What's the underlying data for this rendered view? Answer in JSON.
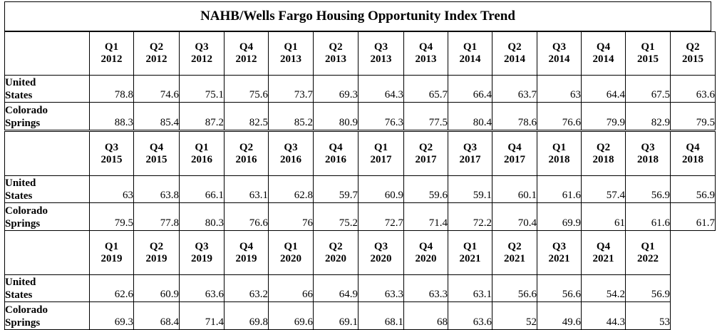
{
  "title": "NAHB/Wells Fargo Housing Opportunity Index Trend",
  "row_labels": {
    "us": [
      "United",
      "States"
    ],
    "co": [
      "Colorado",
      "Springs"
    ]
  },
  "blocks": [
    {
      "periods": [
        [
          "Q1",
          "2012"
        ],
        [
          "Q2",
          "2012"
        ],
        [
          "Q3",
          "2012"
        ],
        [
          "Q4",
          "2012"
        ],
        [
          "Q1",
          "2013"
        ],
        [
          "Q2",
          "2013"
        ],
        [
          "Q3",
          "2013"
        ],
        [
          "Q4",
          "2013"
        ],
        [
          "Q1",
          "2014"
        ],
        [
          "Q2",
          "2014"
        ],
        [
          "Q3",
          "2014"
        ],
        [
          "Q4",
          "2014"
        ],
        [
          "Q1",
          "2015"
        ],
        [
          "Q2",
          "2015"
        ]
      ],
      "us": [
        "78.8",
        "74.6",
        "75.1",
        "75.6",
        "73.7",
        "69.3",
        "64.3",
        "65.7",
        "66.4",
        "63.7",
        "63",
        "64.4",
        "67.5",
        "63.6"
      ],
      "co": [
        "88.3",
        "85.4",
        "87.2",
        "82.5",
        "85.2",
        "80.9",
        "76.3",
        "77.5",
        "80.4",
        "78.6",
        "76.6",
        "79.9",
        "82.9",
        "79.5"
      ]
    },
    {
      "periods": [
        [
          "Q3",
          "2015"
        ],
        [
          "Q4",
          "2015"
        ],
        [
          "Q1",
          "2016"
        ],
        [
          "Q2",
          "2016"
        ],
        [
          "Q3",
          "2016"
        ],
        [
          "Q4",
          "2016"
        ],
        [
          "Q1",
          "2017"
        ],
        [
          "Q2",
          "2017"
        ],
        [
          "Q3",
          "2017"
        ],
        [
          "Q4",
          "2017"
        ],
        [
          "Q1",
          "2018"
        ],
        [
          "Q2",
          "2018"
        ],
        [
          "Q3",
          "2018"
        ],
        [
          "Q4",
          "2018"
        ]
      ],
      "us": [
        "63",
        "63.8",
        "66.1",
        "63.1",
        "62.8",
        "59.7",
        "60.9",
        "59.6",
        "59.1",
        "60.1",
        "61.6",
        "57.4",
        "56.9",
        "56.9"
      ],
      "co": [
        "79.5",
        "77.8",
        "80.3",
        "76.6",
        "76",
        "75.2",
        "72.7",
        "71.4",
        "72.2",
        "70.4",
        "69.9",
        "61",
        "61.6",
        "61.7"
      ]
    },
    {
      "periods": [
        [
          "Q1",
          "2019"
        ],
        [
          "Q2",
          "2019"
        ],
        [
          "Q3",
          "2019"
        ],
        [
          "Q4",
          "2019"
        ],
        [
          "Q1",
          "2020"
        ],
        [
          "Q2",
          "2020"
        ],
        [
          "Q3",
          "2020"
        ],
        [
          "Q4",
          "2020"
        ],
        [
          "Q1",
          "2021"
        ],
        [
          "Q2",
          "2021"
        ],
        [
          "Q3",
          "2021"
        ],
        [
          "Q4",
          "2021"
        ],
        [
          "Q1",
          "2022"
        ]
      ],
      "us": [
        "62.6",
        "60.9",
        "63.6",
        "63.2",
        "66",
        "64.9",
        "63.3",
        "63.3",
        "63.1",
        "56.6",
        "56.6",
        "54.2",
        "56.9"
      ],
      "co": [
        "69.3",
        "68.4",
        "71.4",
        "69.8",
        "69.6",
        "69.1",
        "68.1",
        "68",
        "63.6",
        "52",
        "49.6",
        "44.3",
        "53"
      ]
    }
  ]
}
